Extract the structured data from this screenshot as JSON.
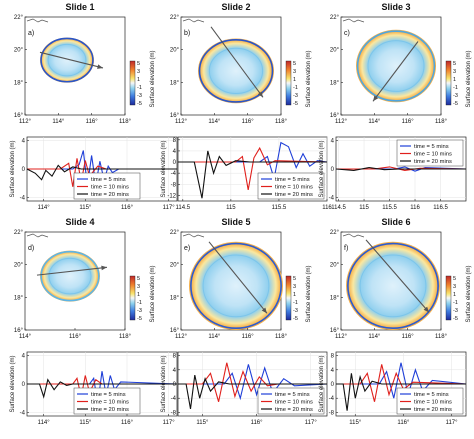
{
  "figure": {
    "slides": [
      {
        "title": "Slide 1",
        "panel_label": "a)",
        "map": {
          "y_ticks": [
            "22°",
            "20°",
            "18°",
            "16°"
          ],
          "x_ticks": [
            "112°",
            "114°",
            "116°",
            "118°"
          ],
          "colorbar_ticks": [
            "5",
            "3",
            "1",
            "-1",
            "-3",
            "-5"
          ],
          "colorbar_label": "Surface elevation (m)"
        },
        "chart_data": {
          "type": "line",
          "ylabel": "Surface elevation (m)",
          "xlim": [
            113.6,
            117.2
          ],
          "ylim": [
            -4.5,
            4.5
          ],
          "x_tick_labels": [
            "114°",
            "115°",
            "116°",
            "117°"
          ],
          "y_tick_labels": [
            "4",
            "0",
            "-4"
          ],
          "legend_position": "lower-center",
          "series": [
            {
              "name": "time = 5 mins",
              "color": "#1f3fd8",
              "x": [
                113.6,
                114.7,
                114.85,
                114.95,
                115.05,
                115.15,
                115.25,
                115.35,
                115.45,
                115.55,
                115.65,
                115.8,
                117.2
              ],
              "y": [
                0,
                0,
                0.6,
                2.6,
                -2.4,
                1.9,
                -2.2,
                1.1,
                -1.6,
                0.4,
                -0.5,
                0,
                0
              ]
            },
            {
              "name": "time = 10 mins",
              "color": "#e0201c",
              "x": [
                113.6,
                114.4,
                114.6,
                114.7,
                114.8,
                114.9,
                115.0,
                115.1,
                115.3,
                115.5,
                117.2
              ],
              "y": [
                0,
                0,
                0.8,
                -2.5,
                1.5,
                -1.8,
                1.2,
                -1.0,
                0.4,
                0,
                0
              ]
            },
            {
              "name": "time = 20 mins",
              "color": "#111111",
              "x": [
                113.6,
                113.8,
                113.95,
                114.05,
                114.2,
                114.35,
                114.5,
                114.7,
                114.9,
                117.2
              ],
              "y": [
                0,
                -0.6,
                -1.5,
                -0.2,
                -1.0,
                0.5,
                -0.4,
                0.3,
                0,
                0
              ]
            }
          ]
        }
      },
      {
        "title": "Slide 2",
        "panel_label": "b)",
        "map": {
          "y_ticks": [
            "22°",
            "20°",
            "18°",
            "16°"
          ],
          "x_ticks": [
            "112°",
            "114°",
            "116°",
            "118°"
          ],
          "colorbar_ticks": [
            "5",
            "3",
            "1",
            "-1",
            "-3",
            "-5"
          ],
          "colorbar_label": "Surface elevation (m)"
        },
        "chart_data": {
          "type": "line",
          "ylabel": "Surface elevation (m)",
          "xlim": [
            114.45,
            116.0
          ],
          "ylim": [
            -14,
            9
          ],
          "x_tick_labels": [
            "114.5",
            "115",
            "115.5",
            "116"
          ],
          "y_tick_labels": [
            "8",
            "4",
            "0",
            "-4",
            "-8",
            "-12"
          ],
          "legend_position": "lower-right",
          "series": [
            {
              "name": "time = 5 mins",
              "color": "#1f3fd8",
              "x": [
                114.45,
                115.3,
                115.38,
                115.45,
                115.52,
                115.6,
                115.68,
                115.75,
                115.82,
                115.9,
                116.0
              ],
              "y": [
                0,
                0,
                2,
                -6,
                7,
                5.5,
                -2,
                3,
                -1.5,
                0.5,
                0
              ]
            },
            {
              "name": "time = 10 mins",
              "color": "#e0201c",
              "x": [
                114.45,
                115.05,
                115.12,
                115.18,
                115.24,
                115.3,
                115.38,
                115.46,
                116.0
              ],
              "y": [
                0,
                0,
                2,
                -10,
                1.5,
                5,
                -1,
                0.5,
                0
              ]
            },
            {
              "name": "time = 20 mins",
              "color": "#111111",
              "x": [
                114.45,
                114.62,
                114.7,
                114.76,
                114.82,
                114.88,
                114.95,
                115.05,
                115.2,
                116.0
              ],
              "y": [
                0,
                0,
                -13,
                4,
                -4,
                2,
                -1.2,
                0.5,
                0,
                0
              ]
            }
          ]
        }
      },
      {
        "title": "Slide 3",
        "panel_label": "c)",
        "map": {
          "y_ticks": [
            "22°",
            "20°",
            "18°",
            "16°"
          ],
          "x_ticks": [
            "112°",
            "114°",
            "116°",
            "118°"
          ],
          "colorbar_ticks": [
            "5",
            "3",
            "1",
            "-1",
            "-3",
            "-5"
          ],
          "colorbar_label": "Surface elevation (m)"
        },
        "chart_data": {
          "type": "line",
          "ylabel": "Surface elevation (m)",
          "xlim": [
            114.45,
            117.0
          ],
          "ylim": [
            -4.5,
            4.5
          ],
          "x_tick_labels": [
            "114.5",
            "115",
            "115.5",
            "116",
            "116.5"
          ],
          "y_tick_labels": [
            "4",
            "0",
            "-4"
          ],
          "legend_position": "upper-right",
          "series": [
            {
              "name": "time = 5 mins",
              "color": "#1f3fd8",
              "x": [
                114.45,
                115.6,
                115.8,
                116.0,
                116.2,
                117.0
              ],
              "y": [
                0,
                0,
                0.3,
                -0.3,
                0.2,
                0
              ]
            },
            {
              "name": "time = 10 mins",
              "color": "#e0201c",
              "x": [
                114.45,
                115.2,
                115.5,
                115.8,
                116.1,
                117.0
              ],
              "y": [
                0,
                0,
                0.3,
                -0.2,
                0.1,
                0
              ]
            },
            {
              "name": "time = 20 mins",
              "color": "#111111",
              "x": [
                114.45,
                114.8,
                115.1,
                115.4,
                115.7,
                117.0
              ],
              "y": [
                0,
                -0.2,
                0.2,
                -0.1,
                0,
                0
              ]
            }
          ]
        }
      },
      {
        "title": "Slide 4",
        "panel_label": "d)",
        "map": {
          "y_ticks": [
            "22°",
            "20°",
            "18°",
            "16°"
          ],
          "x_ticks": [
            "114°",
            "116°",
            "118°"
          ],
          "colorbar_ticks": [
            "5",
            "3",
            "1",
            "-1",
            "-3",
            "-5"
          ],
          "colorbar_label": "Surface elevation (m)"
        },
        "chart_data": {
          "type": "line",
          "ylabel": "Surface elevation (m)",
          "xlim": [
            113.6,
            117.2
          ],
          "ylim": [
            -4.5,
            4.5
          ],
          "x_tick_labels": [
            "114°",
            "115°",
            "116°",
            "117°"
          ],
          "y_tick_labels": [
            "4",
            "0",
            "-4"
          ],
          "legend_position": "lower-center",
          "series": [
            {
              "name": "time = 5 mins",
              "color": "#1f3fd8",
              "x": [
                113.6,
                115.1,
                115.2,
                115.3,
                115.4,
                115.5,
                115.6,
                115.7,
                115.85,
                117.2
              ],
              "y": [
                0,
                0,
                0.8,
                -2.8,
                1.8,
                -1.6,
                1.2,
                -0.8,
                0.3,
                0
              ]
            },
            {
              "name": "time = 10 mins",
              "color": "#e0201c",
              "x": [
                113.6,
                114.7,
                114.8,
                114.9,
                115.0,
                115.1,
                115.25,
                115.4,
                117.2
              ],
              "y": [
                0,
                0,
                0.8,
                -1.8,
                1.2,
                -1.2,
                0.6,
                0,
                0
              ]
            },
            {
              "name": "time = 20 mins",
              "color": "#111111",
              "x": [
                113.6,
                113.9,
                114.0,
                114.1,
                114.25,
                114.4,
                114.55,
                114.7,
                117.2
              ],
              "y": [
                0,
                0,
                -1.8,
                0.6,
                -0.8,
                0.3,
                -0.2,
                0,
                0
              ]
            }
          ]
        }
      },
      {
        "title": "Slide 5",
        "panel_label": "e)",
        "map": {
          "y_ticks": [
            "22°",
            "20°",
            "18°",
            "16°"
          ],
          "x_ticks": [
            "112°",
            "114°",
            "116°",
            "118°"
          ],
          "colorbar_ticks": [
            "5",
            "3",
            "1",
            "-1",
            "-3",
            "-5"
          ],
          "colorbar_label": "Surface elevation (m)"
        },
        "chart_data": {
          "type": "line",
          "ylabel": "Surface elevation (m)",
          "xlim": [
            114.55,
            117.3
          ],
          "ylim": [
            -9,
            9
          ],
          "x_tick_labels": [
            "115°",
            "116°",
            "117°"
          ],
          "y_tick_labels": [
            "8",
            "4",
            "0",
            "-4",
            "-8"
          ],
          "legend_position": "lower-right",
          "series": [
            {
              "name": "time = 5 mins",
              "color": "#1f3fd8",
              "x": [
                114.55,
                115.4,
                115.55,
                115.7,
                115.85,
                116.0,
                116.15,
                116.3,
                116.5,
                116.7,
                117.3
              ],
              "y": [
                0,
                0,
                3,
                -4,
                5.5,
                -3,
                4.5,
                -2.5,
                1.5,
                -0.5,
                0
              ]
            },
            {
              "name": "time = 10 mins",
              "color": "#e0201c",
              "x": [
                114.55,
                115.0,
                115.15,
                115.3,
                115.45,
                115.6,
                115.75,
                115.9,
                116.05,
                116.2,
                116.4,
                117.3
              ],
              "y": [
                0,
                0,
                3,
                -5,
                6,
                -3.5,
                3.5,
                -2,
                2,
                -0.5,
                0,
                0
              ]
            },
            {
              "name": "time = 20 mins",
              "color": "#111111",
              "x": [
                114.55,
                114.7,
                114.78,
                114.86,
                114.95,
                115.05,
                115.15,
                115.3,
                115.5,
                117.3
              ],
              "y": [
                0,
                0,
                -7,
                2.5,
                -4,
                1.5,
                -2,
                0.6,
                0,
                0
              ]
            }
          ]
        }
      },
      {
        "title": "Slide 6",
        "panel_label": "f)",
        "map": {
          "y_ticks": [
            "22°",
            "20°",
            "18°",
            "16°"
          ],
          "x_ticks": [
            "112°",
            "114°",
            "116°",
            "118°"
          ],
          "colorbar_ticks": [
            "5",
            "3",
            "1",
            "-1",
            "-3",
            "-5"
          ],
          "colorbar_label": "Surface elevation (m)"
        },
        "chart_data": {
          "type": "line",
          "ylabel": "Surface elevation (m)",
          "xlim": [
            114.6,
            117.3
          ],
          "ylim": [
            -9,
            9
          ],
          "x_tick_labels": [
            "115°",
            "116°",
            "117°"
          ],
          "y_tick_labels": [
            "8",
            "4",
            "0",
            "-4",
            "-8"
          ],
          "legend_position": "lower-right",
          "series": [
            {
              "name": "time = 5 mins",
              "color": "#1f3fd8",
              "x": [
                114.6,
                115.5,
                115.65,
                115.8,
                115.95,
                116.1,
                116.25,
                116.4,
                116.6,
                117.3
              ],
              "y": [
                0,
                0,
                3.5,
                -4,
                6,
                -3,
                4,
                -2,
                1,
                0
              ]
            },
            {
              "name": "time = 10 mins",
              "color": "#e0201c",
              "x": [
                114.6,
                115.1,
                115.25,
                115.4,
                115.55,
                115.7,
                115.85,
                116.0,
                116.2,
                117.3
              ],
              "y": [
                0,
                0,
                3,
                -5,
                5.5,
                -3,
                3,
                -1.5,
                0.5,
                0
              ]
            },
            {
              "name": "time = 20 mins",
              "color": "#111111",
              "x": [
                114.6,
                114.75,
                114.83,
                114.92,
                115.0,
                115.1,
                115.2,
                115.35,
                115.55,
                117.3
              ],
              "y": [
                0,
                0,
                -7.5,
                3,
                -4,
                2,
                -2,
                0.8,
                0,
                0
              ]
            }
          ]
        }
      }
    ]
  }
}
